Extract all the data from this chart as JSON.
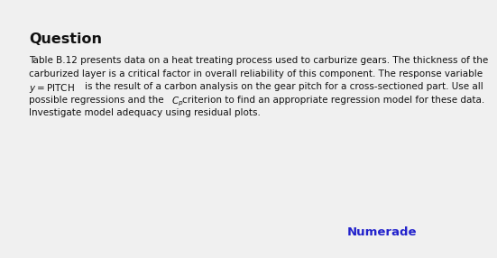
{
  "background_color": "#f0f0f0",
  "title": "Question",
  "title_fontsize": 11.5,
  "title_fontweight": "bold",
  "body_fontsize": 7.5,
  "body_color": "#111111",
  "numerade_color": "#2222cc",
  "numerade_text": "Numerade",
  "numerade_fontsize": 9.5,
  "line1": "Table B.12 presents data on a heat treating process used to carburize gears. The thickness of the",
  "line2": "carburized layer is a critical factor in overall reliability of this component. The response variable",
  "line3a": "y = PITCH",
  "line3b": "is the result of a carbon analysis on the gear pitch for a cross-sectioned part. Use all",
  "line4a": "possible regressions and the ",
  "line4b": "criterion to find an appropriate regression model for these data.",
  "line5": "Investigate model adequacy using residual plots."
}
